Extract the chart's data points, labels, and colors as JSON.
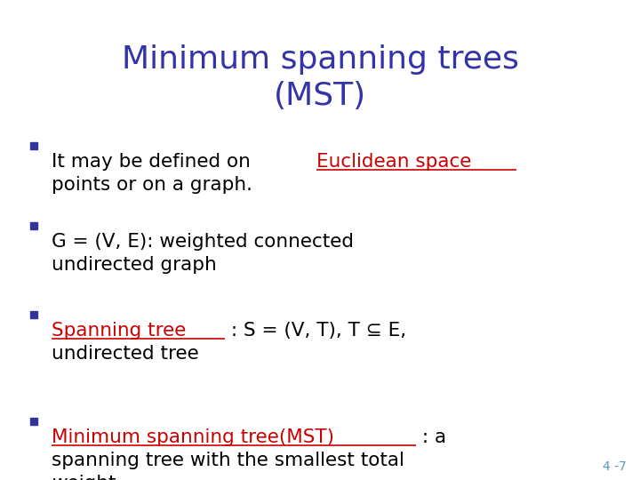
{
  "title_line1": "Minimum spanning trees",
  "title_line2": "(MST)",
  "title_color": "#3333aa",
  "title_fontsize": 26,
  "bg_color": "#ffffff",
  "bullet_color": "#333399",
  "body_color": "#000000",
  "link_color": "#cc0000",
  "body_fontsize": 15.5,
  "page_number": "4 -7",
  "page_number_color": "#5599bb",
  "page_number_fontsize": 10,
  "bullets": [
    {
      "parts": [
        {
          "text": "It may be defined on ",
          "color": "#000000",
          "underline": false
        },
        {
          "text": "Euclidean space",
          "color": "#cc0000",
          "underline": true
        },
        {
          "text": "\npoints or on a graph.",
          "color": "#000000",
          "underline": false
        }
      ]
    },
    {
      "parts": [
        {
          "text": "G = (V, E): weighted connected\nundirected graph",
          "color": "#000000",
          "underline": false
        }
      ]
    },
    {
      "parts": [
        {
          "text": "Spanning tree",
          "color": "#cc0000",
          "underline": true
        },
        {
          "text": " : S = (V, T), T ⊆ E,\nundirected tree",
          "color": "#000000",
          "underline": false
        }
      ]
    },
    {
      "parts": [
        {
          "text": "Minimum spanning tree(MST)",
          "color": "#cc0000",
          "underline": true
        },
        {
          "text": " : a\nspanning tree with the smallest total\nweight.",
          "color": "#000000",
          "underline": false
        }
      ]
    }
  ]
}
